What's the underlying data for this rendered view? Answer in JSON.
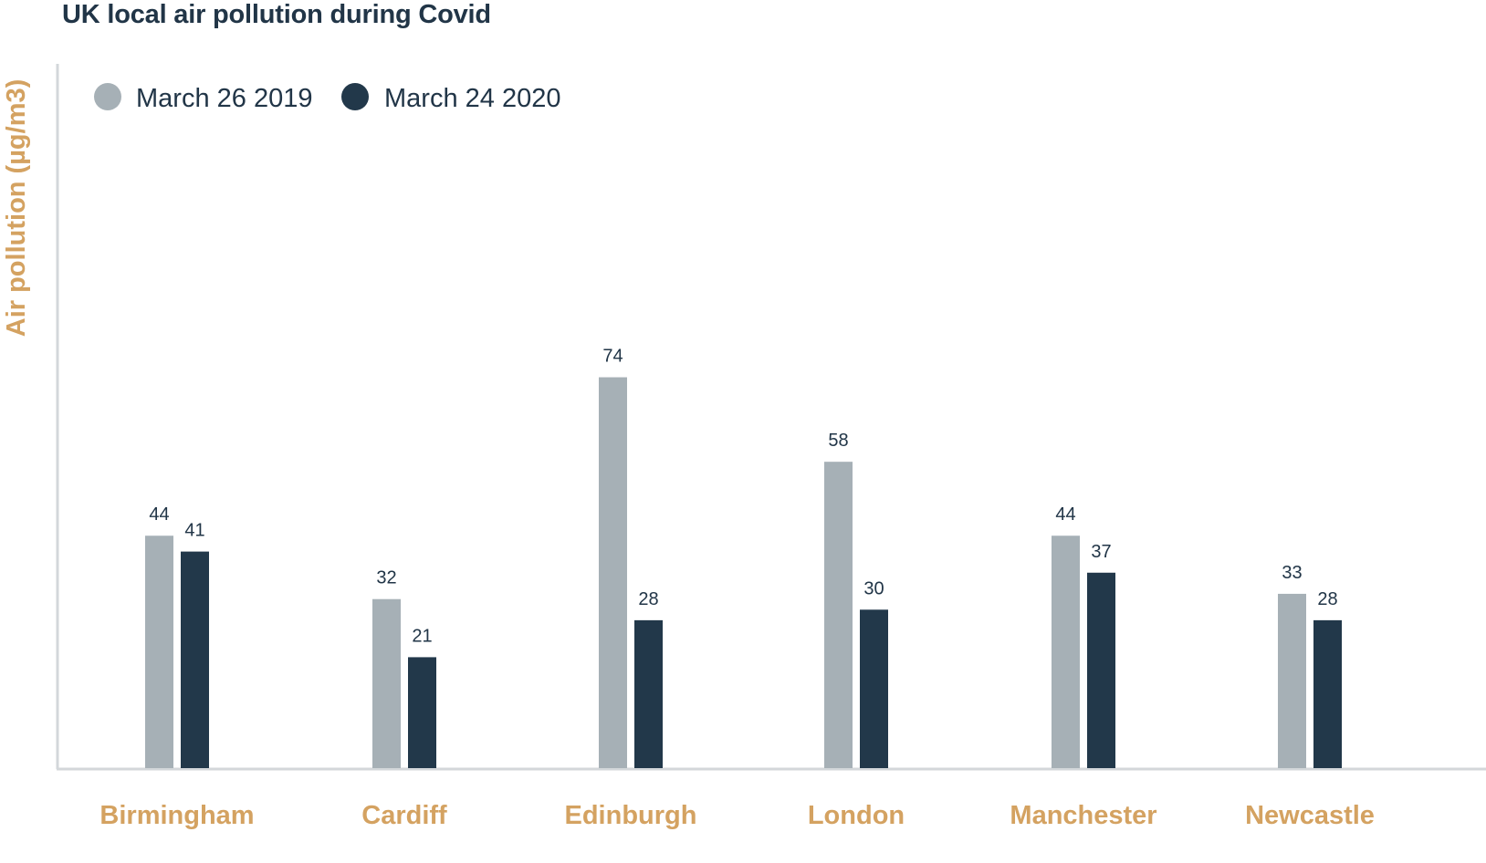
{
  "chart_data": {
    "type": "bar",
    "title": "UK local air pollution during Covid",
    "ylabel": "Air pollution (µg/m3)",
    "xlabel": "",
    "categories": [
      "Birmingham",
      "Cardiff",
      "Edinburgh",
      "London",
      "Manchester",
      "Newcastle"
    ],
    "series": [
      {
        "name": "March 26 2019",
        "color": "#a6b0b6",
        "values": [
          44,
          32,
          74,
          58,
          44,
          33
        ]
      },
      {
        "name": "March 24 2020",
        "color": "#22384a",
        "values": [
          41,
          21,
          28,
          30,
          37,
          28
        ]
      }
    ],
    "ylim": [
      0,
      80
    ],
    "grid": false,
    "legend": "top-left",
    "colors": {
      "title": "#213547",
      "category_label": "#d4a261",
      "axis": "#d3d7da"
    }
  }
}
